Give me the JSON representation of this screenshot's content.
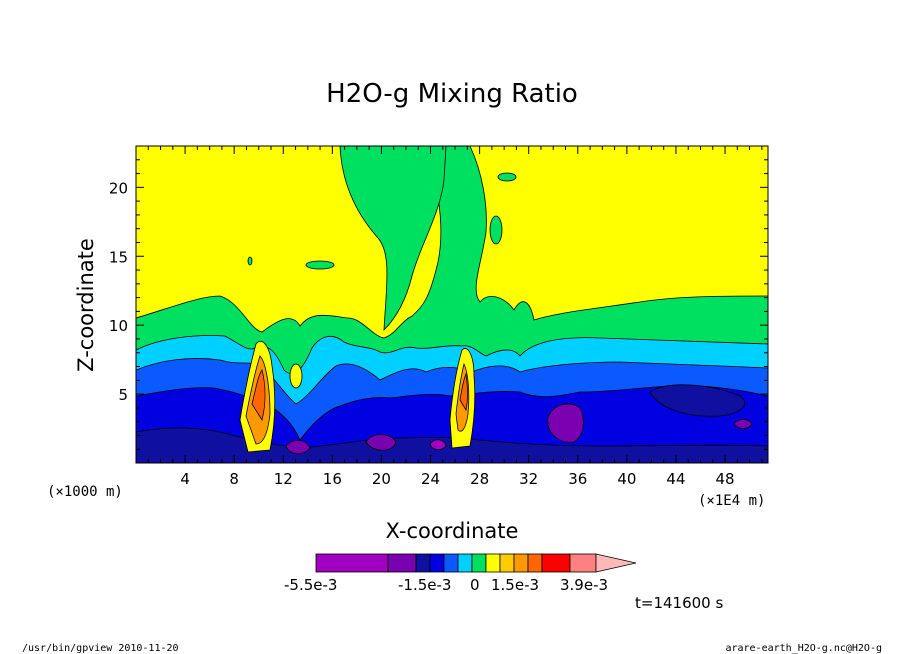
{
  "chart_data": {
    "type": "heatmap",
    "title": "H2O-g Mixing Ratio",
    "xlabel": "X-coordinate",
    "ylabel": "Z-coordinate",
    "x_unit_left": "(×1000 m)",
    "x_unit_right": "(×1E4 m)",
    "xlim": [
      0,
      51.5
    ],
    "ylim": [
      0,
      23
    ],
    "x_ticks": [
      4,
      8,
      12,
      16,
      20,
      24,
      28,
      32,
      36,
      40,
      44,
      48
    ],
    "y_ticks": [
      5,
      10,
      15,
      20
    ],
    "colorbar": {
      "colors": [
        "#a000c0",
        "#7a00b0",
        "#1010a0",
        "#0000e0",
        "#0a5aff",
        "#00d0ff",
        "#00e060",
        "#ffff00",
        "#ffcc00",
        "#ff9900",
        "#ff6600",
        "#ff0000",
        "#ff8080",
        "#ffb8b8"
      ],
      "labels": [
        "-5.5e-3",
        "-1.5e-3",
        "0",
        "1.5e-3",
        "3.9e-3"
      ]
    },
    "time_label": "t=141600 s"
  },
  "footer": {
    "left": "/usr/bin/gpview  2010-11-20",
    "right": "arare-earth_H2O-g.nc@H2O-g"
  }
}
